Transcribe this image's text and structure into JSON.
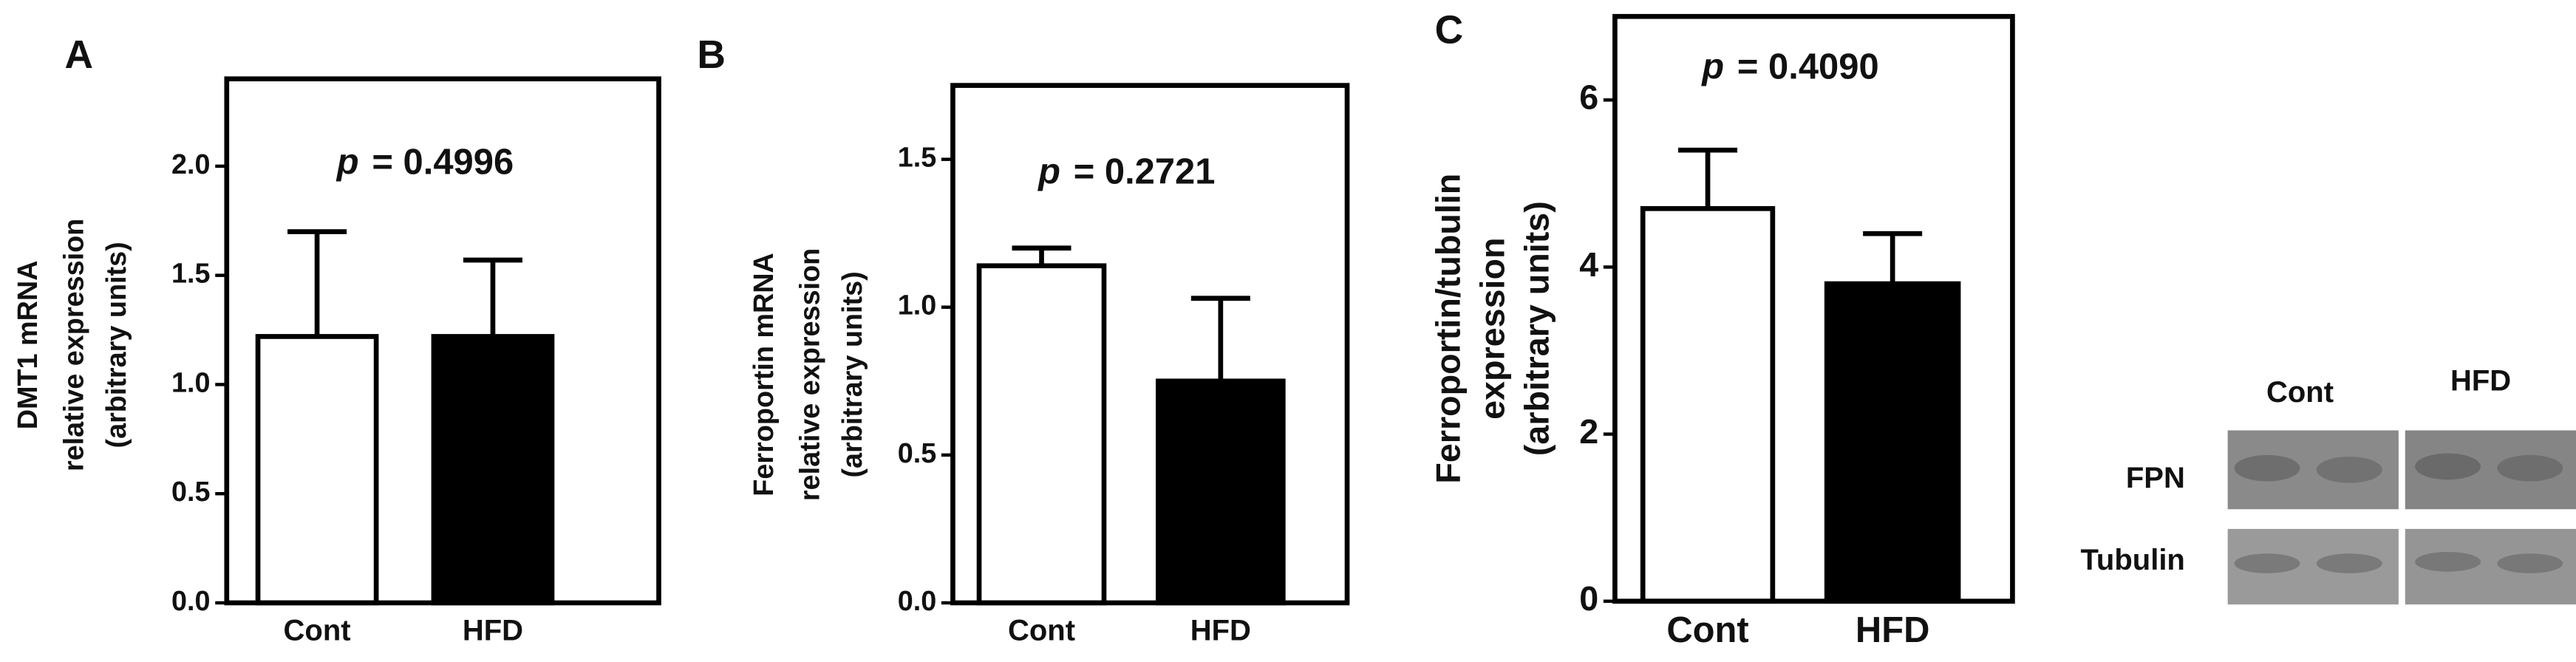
{
  "chart_data": [
    {
      "type": "bar",
      "panel": "A",
      "ylabel": [
        "DMT1 mRNA",
        "relative expression",
        "(arbitrary units)"
      ],
      "annotation_prefix": "p",
      "annotation": "= 0.4996",
      "categories": [
        "Cont",
        "HFD"
      ],
      "values": [
        1.22,
        1.22
      ],
      "errors": [
        0.48,
        0.35
      ],
      "colors": [
        "#ffffff",
        "#000000"
      ],
      "ylim": [
        0,
        2.4
      ],
      "yticks": [
        {
          "value": 0,
          "label": "0.0"
        },
        0.5,
        {
          "value": 1,
          "label": "1.0"
        },
        1.5,
        {
          "value": 2,
          "label": "2.0"
        }
      ]
    },
    {
      "type": "bar",
      "panel": "B",
      "ylabel": [
        "Ferroportin mRNA",
        "relative expression",
        "(arbitrary units)"
      ],
      "annotation_prefix": "p",
      "annotation": "= 0.2721",
      "categories": [
        "Cont",
        "HFD"
      ],
      "values": [
        1.14,
        0.75
      ],
      "errors": [
        0.06,
        0.28
      ],
      "colors": [
        "#ffffff",
        "#000000"
      ],
      "ylim": [
        0,
        1.75
      ],
      "yticks": [
        {
          "value": 0,
          "label": "0.0"
        },
        0.5,
        {
          "value": 1,
          "label": "1.0"
        },
        1.5
      ]
    },
    {
      "type": "bar",
      "panel": "C",
      "ylabel": [
        "Ferroportin/tubulin",
        "expression",
        "(arbitrary units)"
      ],
      "annotation_prefix": "p",
      "annotation": "= 0.4090",
      "categories": [
        "Cont",
        "HFD"
      ],
      "values": [
        4.7,
        3.8
      ],
      "errors": [
        0.7,
        0.6
      ],
      "colors": [
        "#ffffff",
        "#000000"
      ],
      "ylim": [
        0,
        7
      ],
      "yticks": [
        0,
        2,
        4,
        6
      ]
    }
  ],
  "blot": {
    "columns": [
      "Cont",
      "HFD"
    ],
    "rows": [
      "FPN",
      "Tubulin"
    ]
  }
}
